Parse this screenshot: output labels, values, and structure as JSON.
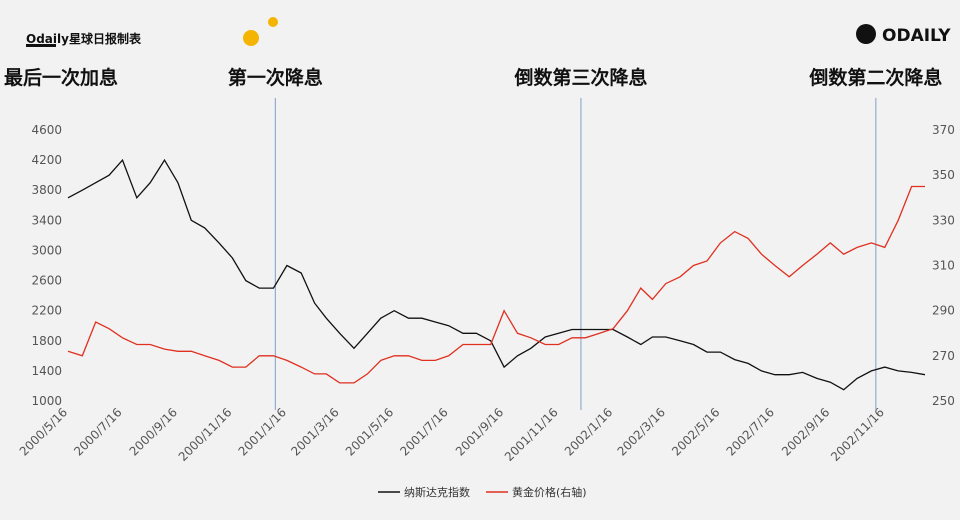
{
  "header": {
    "brand": "Odaily星球日报制表",
    "logo": "ODAILY"
  },
  "chart_data": {
    "type": "line",
    "annotations": [
      {
        "text": "最后一次加息"
      },
      {
        "text": "第一次降息",
        "x": "2001/1/3"
      },
      {
        "text": "倒数第三次降息",
        "x": "2001/12/11"
      },
      {
        "text": "倒数第二次降息",
        "x": "2002/11/6"
      }
    ],
    "x": [
      "2000/5/16",
      "2000/6/1",
      "2000/6/16",
      "2000/7/1",
      "2000/7/16",
      "2000/8/1",
      "2000/8/16",
      "2000/9/1",
      "2000/9/16",
      "2000/10/1",
      "2000/10/16",
      "2000/11/1",
      "2000/11/16",
      "2000/12/1",
      "2000/12/16",
      "2001/1/1",
      "2001/1/16",
      "2001/2/1",
      "2001/2/16",
      "2001/3/1",
      "2001/3/16",
      "2001/4/1",
      "2001/4/16",
      "2001/5/1",
      "2001/5/16",
      "2001/6/1",
      "2001/6/16",
      "2001/7/1",
      "2001/7/16",
      "2001/8/1",
      "2001/8/16",
      "2001/9/1",
      "2001/9/16",
      "2001/10/1",
      "2001/10/16",
      "2001/11/1",
      "2001/11/16",
      "2001/12/1",
      "2001/12/16",
      "2002/1/1",
      "2002/1/16",
      "2002/2/1",
      "2002/2/16",
      "2002/3/1",
      "2002/3/16",
      "2002/4/1",
      "2002/4/16",
      "2002/5/1",
      "2002/5/16",
      "2002/6/1",
      "2002/6/16",
      "2002/7/1",
      "2002/7/16",
      "2002/8/1",
      "2002/8/16",
      "2002/9/1",
      "2002/9/16",
      "2002/10/1",
      "2002/10/16",
      "2002/11/1",
      "2002/11/16",
      "2002/12/1",
      "2002/12/16",
      "2002/12/31"
    ],
    "series": [
      {
        "name": "纳斯达克指数",
        "color": "#111111",
        "values": [
          3700,
          3800,
          3900,
          4000,
          4200,
          3700,
          3900,
          4200,
          3900,
          3400,
          3300,
          3100,
          2900,
          2600,
          2500,
          2500,
          2800,
          2700,
          2300,
          2100,
          1900,
          1700,
          1900,
          2100,
          2200,
          2100,
          2100,
          2050,
          2000,
          1900,
          1900,
          1800,
          1450,
          1600,
          1700,
          1850,
          1900,
          1950,
          1950,
          1950,
          1950,
          1850,
          1750,
          1850,
          1850,
          1800,
          1750,
          1650,
          1650,
          1550,
          1500,
          1400,
          1350,
          1350,
          1380,
          1300,
          1250,
          1150,
          1300,
          1400,
          1450,
          1400,
          1380,
          1350
        ]
      },
      {
        "name": "黄金价格(右轴)",
        "color": "#e03020",
        "axis": "y2",
        "values": [
          272,
          270,
          285,
          282,
          278,
          275,
          275,
          273,
          272,
          272,
          270,
          268,
          265,
          265,
          270,
          270,
          268,
          265,
          262,
          262,
          258,
          258,
          262,
          268,
          270,
          270,
          268,
          268,
          270,
          275,
          275,
          275,
          290,
          280,
          278,
          275,
          275,
          278,
          278,
          280,
          282,
          290,
          300,
          295,
          302,
          305,
          310,
          312,
          320,
          325,
          322,
          315,
          310,
          305,
          310,
          315,
          320,
          315,
          318,
          320,
          318,
          330,
          345,
          345
        ]
      }
    ],
    "xlim": [
      "2000/5/16",
      "2002/12/31"
    ],
    "xticks": [
      "2000/5/16",
      "2000/7/16",
      "2000/9/16",
      "2000/11/16",
      "2001/1/16",
      "2001/3/16",
      "2001/5/16",
      "2001/7/16",
      "2001/9/16",
      "2001/11/16",
      "2002/1/16",
      "2002/3/16",
      "2002/5/16",
      "2002/7/16",
      "2002/9/16",
      "2002/11/16"
    ],
    "ylim": [
      1000,
      4600
    ],
    "yticks": [
      1000,
      1400,
      1800,
      2200,
      2600,
      3000,
      3400,
      3800,
      4200,
      4600
    ],
    "y2lim": [
      250,
      370
    ],
    "y2ticks": [
      250,
      270,
      290,
      310,
      330,
      350,
      370
    ],
    "annotation_line_color": "#7f9fc9",
    "legend": "bottom"
  }
}
